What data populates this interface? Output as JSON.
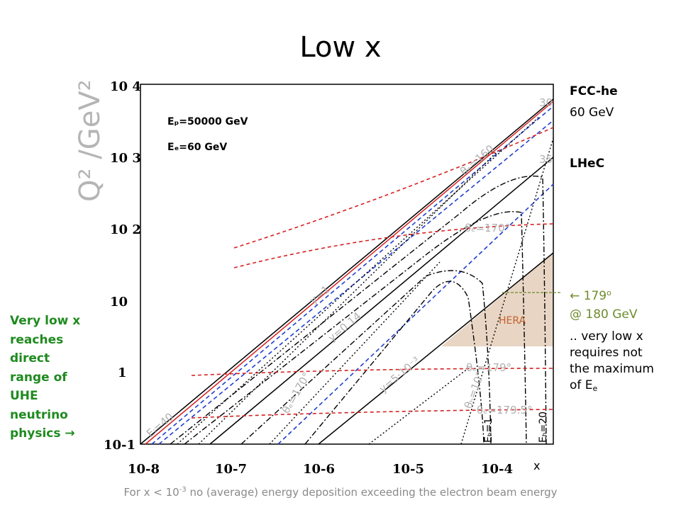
{
  "title": "Low x",
  "chart_data": {
    "type": "line",
    "title": "",
    "xlabel": "x",
    "ylabel": "Q² /GeV²",
    "xscale": "log",
    "yscale": "log",
    "xlim": [
      1e-08,
      0.001
    ],
    "ylim": [
      0.1,
      10000
    ],
    "x_ticks": [
      "10-8",
      "10-7",
      "10-6",
      "10-5",
      "10-4"
    ],
    "y_ticks": [
      "10-1",
      "1",
      "10",
      "10 2",
      "10 3",
      "10 4"
    ],
    "beam_labels": [
      "Eₚ=50000 GeV",
      "Eₑ=60 GeV"
    ],
    "kinematic_limits": [
      {
        "name": "Eₑ=60 GeV",
        "x": [
          1e-08,
          0.001
        ],
        "q2": [
          0.3,
          3000
        ]
      },
      {
        "name": "Eₑ=180 GeV",
        "x": [
          1e-08,
          0.001
        ],
        "q2": [
          1.2,
          3000
        ]
      },
      {
        "name": "y=1",
        "x": [
          1e-08,
          0.001
        ],
        "q2": [
          0.25,
          3000
        ]
      },
      {
        "name": "y=0.14",
        "x": [
          1e-07,
          0.001
        ],
        "q2": [
          0.03,
          300
        ]
      },
      {
        "name": "y=5·10⁻³",
        "x": [
          1e-06,
          0.001
        ],
        "q2": [
          0.01,
          10
        ]
      }
    ],
    "angle_curves": [
      {
        "label": "θₑ=179°",
        "q2_max": 2400
      },
      {
        "label": "θₑ=170°",
        "q2_max": 100
      },
      {
        "label": "θₑ=179°",
        "q2_max": 1
      },
      {
        "label": "θₑ=179.5°",
        "q2_max": 0.3
      }
    ],
    "annotations": [
      "Eₗ=40",
      "30",
      "35",
      "θₑ=160",
      "θₑ=170°",
      "y=1",
      "y=0.14",
      "y=5·10⁻³",
      "θₑ=179°",
      "θₑ=179.5°",
      "θₕ=10°",
      "θₑ=170°",
      "Eₕ=1",
      "Eₕ=20"
    ],
    "hera_region": {
      "label": "HERA",
      "q2_range": [
        2.5,
        60
      ],
      "x_range": [
        1e-05,
        0.001
      ],
      "color": "#e8d5c4"
    }
  },
  "right_labels": {
    "fcc_title": "FCC-he",
    "fcc_energy": "60 GeV",
    "lhec": "LHeC",
    "arrow_line1": "← 179",
    "arrow_line1_sup": "o",
    "arrow_line2": "@ 180 GeV",
    "note_line1": ".. very low x",
    "note_line2": "requires not",
    "note_line3": "the maximum",
    "note_line4": "of E",
    "note_sub": "e"
  },
  "left_note": [
    "Very low x",
    "reaches",
    "direct",
    "range of",
    "UHE",
    "neutrino",
    "physics →"
  ],
  "footnote": {
    "pre": "For x < 10",
    "sup": "-3",
    "post": " no (average) energy deposition exceeding the electron beam energy"
  },
  "colors": {
    "red": "#d62020",
    "blue": "#1f3fd0",
    "hera": "#e8d5c4",
    "green": "#1f8a1f"
  }
}
